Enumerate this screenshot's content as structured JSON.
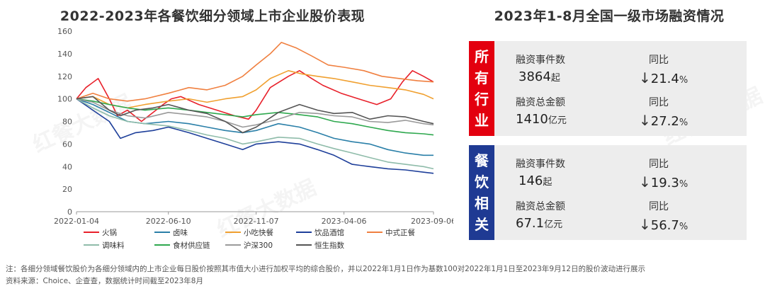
{
  "left_title": "2022-2023年各餐饮细分领域上市企业股价表现",
  "right_title": "2023年1-8月全国一级市场融资情况",
  "chart_data": {
    "type": "line",
    "title": "2022-2023年各餐饮细分领域上市企业股价表现",
    "ylim": [
      0,
      160
    ],
    "yticks": [
      0,
      20,
      40,
      60,
      80,
      100,
      120,
      140,
      160
    ],
    "x_tick_labels": [
      "2022-01-04",
      "2022-06-10",
      "2022-11-07",
      "2023-04-06",
      "2023-09-06"
    ],
    "x_tick_dates": [
      "2022-01-04",
      "2022-06-10",
      "2022-11-07",
      "2023-04-06",
      "2023-09-06"
    ],
    "grid": false,
    "legend": "bottom",
    "series": [
      {
        "name": "火锅",
        "color": "#e8202a",
        "points": [
          [
            "2022-01-04",
            100
          ],
          [
            "2022-01-20",
            110
          ],
          [
            "2022-02-10",
            118
          ],
          [
            "2022-03-01",
            100
          ],
          [
            "2022-03-15",
            85
          ],
          [
            "2022-04-01",
            90
          ],
          [
            "2022-04-25",
            80
          ],
          [
            "2022-05-15",
            88
          ],
          [
            "2022-06-01",
            95
          ],
          [
            "2022-06-15",
            100
          ],
          [
            "2022-07-01",
            102
          ],
          [
            "2022-08-01",
            95
          ],
          [
            "2022-09-01",
            90
          ],
          [
            "2022-10-01",
            85
          ],
          [
            "2022-10-25",
            82
          ],
          [
            "2022-11-07",
            90
          ],
          [
            "2022-12-01",
            110
          ],
          [
            "2023-01-01",
            120
          ],
          [
            "2023-01-20",
            125
          ],
          [
            "2023-02-10",
            118
          ],
          [
            "2023-03-01",
            112
          ],
          [
            "2023-04-01",
            105
          ],
          [
            "2023-05-01",
            100
          ],
          [
            "2023-06-01",
            95
          ],
          [
            "2023-06-25",
            100
          ],
          [
            "2023-07-15",
            115
          ],
          [
            "2023-08-01",
            125
          ],
          [
            "2023-08-20",
            120
          ],
          [
            "2023-09-06",
            115
          ]
        ]
      },
      {
        "name": "卤味",
        "color": "#2a7fa8",
        "points": [
          [
            "2022-01-04",
            100
          ],
          [
            "2022-02-01",
            95
          ],
          [
            "2022-03-01",
            88
          ],
          [
            "2022-04-01",
            80
          ],
          [
            "2022-05-01",
            78
          ],
          [
            "2022-06-10",
            80
          ],
          [
            "2022-07-15",
            78
          ],
          [
            "2022-08-15",
            75
          ],
          [
            "2022-09-15",
            72
          ],
          [
            "2022-10-15",
            70
          ],
          [
            "2022-11-07",
            72
          ],
          [
            "2022-12-15",
            78
          ],
          [
            "2023-01-20",
            75
          ],
          [
            "2023-02-20",
            70
          ],
          [
            "2023-03-20",
            65
          ],
          [
            "2023-04-20",
            62
          ],
          [
            "2023-05-20",
            60
          ],
          [
            "2023-06-20",
            55
          ],
          [
            "2023-07-20",
            52
          ],
          [
            "2023-08-20",
            50
          ],
          [
            "2023-09-06",
            50
          ]
        ]
      },
      {
        "name": "小吃快餐",
        "color": "#f0a030",
        "points": [
          [
            "2022-01-04",
            100
          ],
          [
            "2022-02-01",
            102
          ],
          [
            "2022-03-01",
            95
          ],
          [
            "2022-04-01",
            92
          ],
          [
            "2022-05-01",
            95
          ],
          [
            "2022-06-10",
            98
          ],
          [
            "2022-07-15",
            100
          ],
          [
            "2022-08-15",
            97
          ],
          [
            "2022-09-15",
            100
          ],
          [
            "2022-10-15",
            102
          ],
          [
            "2022-11-07",
            108
          ],
          [
            "2022-12-01",
            118
          ],
          [
            "2023-01-01",
            125
          ],
          [
            "2023-01-25",
            122
          ],
          [
            "2023-02-20",
            120
          ],
          [
            "2023-03-20",
            118
          ],
          [
            "2023-04-20",
            115
          ],
          [
            "2023-05-20",
            112
          ],
          [
            "2023-06-20",
            110
          ],
          [
            "2023-07-20",
            108
          ],
          [
            "2023-08-20",
            104
          ],
          [
            "2023-09-06",
            100
          ]
        ]
      },
      {
        "name": "饮品酒馆",
        "color": "#1e3f9a",
        "points": [
          [
            "2022-01-04",
            100
          ],
          [
            "2022-02-01",
            90
          ],
          [
            "2022-03-01",
            80
          ],
          [
            "2022-03-20",
            65
          ],
          [
            "2022-04-15",
            70
          ],
          [
            "2022-05-15",
            72
          ],
          [
            "2022-06-10",
            75
          ],
          [
            "2022-07-15",
            70
          ],
          [
            "2022-08-15",
            65
          ],
          [
            "2022-09-15",
            60
          ],
          [
            "2022-10-15",
            55
          ],
          [
            "2022-11-07",
            60
          ],
          [
            "2022-12-15",
            62
          ],
          [
            "2023-01-20",
            60
          ],
          [
            "2023-02-20",
            55
          ],
          [
            "2023-03-20",
            50
          ],
          [
            "2023-04-20",
            42
          ],
          [
            "2023-05-20",
            40
          ],
          [
            "2023-06-20",
            38
          ],
          [
            "2023-07-20",
            37
          ],
          [
            "2023-08-20",
            35
          ],
          [
            "2023-09-06",
            34
          ]
        ]
      },
      {
        "name": "中式正餐",
        "color": "#f08040",
        "points": [
          [
            "2022-01-04",
            100
          ],
          [
            "2022-02-01",
            105
          ],
          [
            "2022-03-01",
            100
          ],
          [
            "2022-04-01",
            98
          ],
          [
            "2022-05-01",
            100
          ],
          [
            "2022-06-10",
            105
          ],
          [
            "2022-07-15",
            110
          ],
          [
            "2022-08-15",
            108
          ],
          [
            "2022-09-15",
            112
          ],
          [
            "2022-10-15",
            120
          ],
          [
            "2022-11-07",
            130
          ],
          [
            "2022-12-01",
            140
          ],
          [
            "2022-12-20",
            150
          ],
          [
            "2023-01-15",
            145
          ],
          [
            "2023-02-10",
            138
          ],
          [
            "2023-03-10",
            130
          ],
          [
            "2023-04-06",
            128
          ],
          [
            "2023-05-10",
            125
          ],
          [
            "2023-06-10",
            120
          ],
          [
            "2023-07-10",
            118
          ],
          [
            "2023-08-10",
            116
          ],
          [
            "2023-09-06",
            115
          ]
        ]
      },
      {
        "name": "调味料",
        "color": "#8fbcaa",
        "points": [
          [
            "2022-01-04",
            100
          ],
          [
            "2022-02-01",
            92
          ],
          [
            "2022-03-01",
            85
          ],
          [
            "2022-04-01",
            80
          ],
          [
            "2022-05-01",
            78
          ],
          [
            "2022-06-10",
            76
          ],
          [
            "2022-07-15",
            72
          ],
          [
            "2022-08-15",
            68
          ],
          [
            "2022-09-15",
            65
          ],
          [
            "2022-10-15",
            60
          ],
          [
            "2022-11-07",
            62
          ],
          [
            "2022-12-15",
            66
          ],
          [
            "2023-01-20",
            65
          ],
          [
            "2023-02-20",
            60
          ],
          [
            "2023-03-20",
            56
          ],
          [
            "2023-04-20",
            52
          ],
          [
            "2023-05-20",
            48
          ],
          [
            "2023-06-20",
            44
          ],
          [
            "2023-07-20",
            42
          ],
          [
            "2023-08-20",
            40
          ],
          [
            "2023-09-06",
            38
          ]
        ]
      },
      {
        "name": "食材供应链",
        "color": "#2ea84e",
        "points": [
          [
            "2022-01-04",
            100
          ],
          [
            "2022-02-01",
            98
          ],
          [
            "2022-03-01",
            95
          ],
          [
            "2022-04-01",
            92
          ],
          [
            "2022-05-01",
            90
          ],
          [
            "2022-06-10",
            92
          ],
          [
            "2022-07-15",
            90
          ],
          [
            "2022-08-15",
            88
          ],
          [
            "2022-09-15",
            86
          ],
          [
            "2022-10-15",
            84
          ],
          [
            "2022-11-07",
            86
          ],
          [
            "2022-12-15",
            88
          ],
          [
            "2023-01-20",
            86
          ],
          [
            "2023-02-20",
            84
          ],
          [
            "2023-03-20",
            80
          ],
          [
            "2023-04-20",
            78
          ],
          [
            "2023-05-20",
            75
          ],
          [
            "2023-06-20",
            72
          ],
          [
            "2023-07-20",
            70
          ],
          [
            "2023-08-20",
            69
          ],
          [
            "2023-09-06",
            68
          ]
        ]
      },
      {
        "name": "沪深300",
        "color": "#9a9a9a",
        "points": [
          [
            "2022-01-04",
            100
          ],
          [
            "2022-02-01",
            97
          ],
          [
            "2022-03-01",
            90
          ],
          [
            "2022-04-01",
            85
          ],
          [
            "2022-05-01",
            83
          ],
          [
            "2022-06-10",
            88
          ],
          [
            "2022-07-15",
            86
          ],
          [
            "2022-08-15",
            84
          ],
          [
            "2022-09-15",
            80
          ],
          [
            "2022-10-15",
            75
          ],
          [
            "2022-11-07",
            77
          ],
          [
            "2022-12-15",
            82
          ],
          [
            "2023-01-20",
            88
          ],
          [
            "2023-02-20",
            87
          ],
          [
            "2023-03-20",
            85
          ],
          [
            "2023-04-20",
            84
          ],
          [
            "2023-05-20",
            80
          ],
          [
            "2023-06-20",
            79
          ],
          [
            "2023-07-20",
            81
          ],
          [
            "2023-08-20",
            78
          ],
          [
            "2023-09-06",
            77
          ]
        ]
      },
      {
        "name": "恒生指数",
        "color": "#555555",
        "points": [
          [
            "2022-01-04",
            100
          ],
          [
            "2022-02-01",
            102
          ],
          [
            "2022-03-01",
            90
          ],
          [
            "2022-03-20",
            85
          ],
          [
            "2022-04-15",
            90
          ],
          [
            "2022-05-15",
            92
          ],
          [
            "2022-06-10",
            95
          ],
          [
            "2022-07-15",
            90
          ],
          [
            "2022-08-15",
            87
          ],
          [
            "2022-09-15",
            80
          ],
          [
            "2022-10-15",
            70
          ],
          [
            "2022-11-07",
            75
          ],
          [
            "2022-12-15",
            88
          ],
          [
            "2023-01-20",
            95
          ],
          [
            "2023-02-20",
            90
          ],
          [
            "2023-03-20",
            87
          ],
          [
            "2023-04-20",
            88
          ],
          [
            "2023-05-20",
            82
          ],
          [
            "2023-06-20",
            85
          ],
          [
            "2023-07-20",
            84
          ],
          [
            "2023-08-20",
            80
          ],
          [
            "2023-09-06",
            78
          ]
        ]
      }
    ]
  },
  "panels": [
    {
      "label": [
        "所",
        "有",
        "行",
        "业"
      ],
      "color": "#e3000f",
      "count_label": "融资事件数",
      "count_value": "3864",
      "count_unit": "起",
      "count_yoy_label": "同比",
      "count_yoy_arrow": "↓",
      "count_yoy_value": "21.4",
      "count_yoy_unit": "%",
      "amount_label": "融资总金额",
      "amount_value": "1410",
      "amount_unit": "亿元",
      "amount_yoy_label": "同比",
      "amount_yoy_arrow": "↓",
      "amount_yoy_value": "27.2",
      "amount_yoy_unit": "%"
    },
    {
      "label": [
        "餐",
        "饮",
        "相",
        "关"
      ],
      "color": "#1f3a93",
      "count_label": "融资事件数",
      "count_value": "146",
      "count_unit": "起",
      "count_yoy_label": "同比",
      "count_yoy_arrow": "↓",
      "count_yoy_value": "19.3",
      "count_yoy_unit": "%",
      "amount_label": "融资总金额",
      "amount_value": "67.1",
      "amount_unit": "亿元",
      "amount_yoy_label": "同比",
      "amount_yoy_arrow": "↓",
      "amount_yoy_value": "56.7",
      "amount_yoy_unit": "%"
    }
  ],
  "footer": {
    "note": "注：各细分领域餐饮股价为各细分领域内的上市企业每日股价按照其市值大小进行加权平均的综合股价，并以2022年1月1日作为基数100对2022年1月1日至2023年9月12日的股价波动进行展示",
    "source": "资料来源：Choice、企查查，数据统计时间截至2023年8月"
  },
  "watermark": "红餐大数据"
}
